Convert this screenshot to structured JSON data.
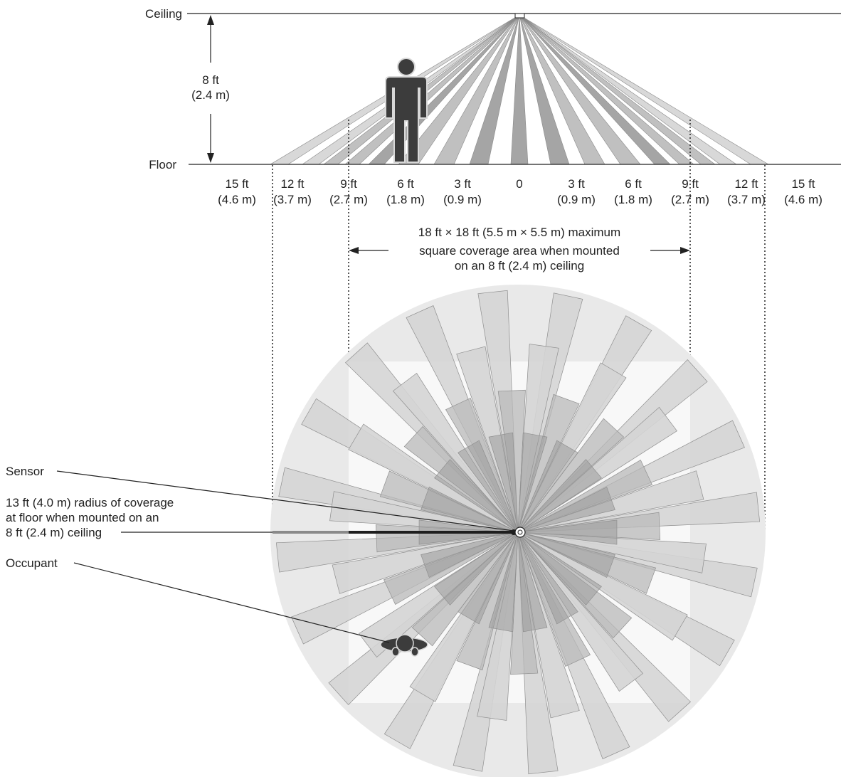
{
  "side_view": {
    "ceiling_label": "Ceiling",
    "floor_label": "Floor",
    "height_ft": "8 ft",
    "height_m": "(2.4 m)",
    "ticks": [
      {
        "ft": "15 ft",
        "m": "(4.6 m)"
      },
      {
        "ft": "12 ft",
        "m": "(3.7 m)"
      },
      {
        "ft": "9 ft",
        "m": "(2.7 m)"
      },
      {
        "ft": "6 ft",
        "m": "(1.8 m)"
      },
      {
        "ft": "3 ft",
        "m": "(0.9 m)"
      },
      {
        "ft": "0",
        "m": ""
      },
      {
        "ft": "3 ft",
        "m": "(0.9 m)"
      },
      {
        "ft": "6 ft",
        "m": "(1.8 m)"
      },
      {
        "ft": "9 ft",
        "m": "(2.7 m)"
      },
      {
        "ft": "12 ft",
        "m": "(3.7 m)"
      },
      {
        "ft": "15 ft",
        "m": "(4.6 m)"
      }
    ]
  },
  "coverage_note": {
    "line1": "18 ft × 18 ft (5.5 m × 5.5 m) maximum",
    "line2": "square coverage area when mounted",
    "line3": "on an 8 ft (2.4 m) ceiling"
  },
  "callouts": {
    "sensor": "Sensor",
    "radius_line1": "13 ft (4.0 m) radius of coverage",
    "radius_line2": "at floor when mounted on an",
    "radius_line3": "8 ft (2.4 m) ceiling",
    "occupant": "Occupant"
  },
  "colors": {
    "circle_fill": "#e9e9e9",
    "square_fill": "#f8f8f8",
    "beam_light": "#d4d4d4",
    "beam_mid": "#b9b9b9",
    "beam_dark": "#9b9b9b",
    "figure": "#3c3c3c"
  }
}
